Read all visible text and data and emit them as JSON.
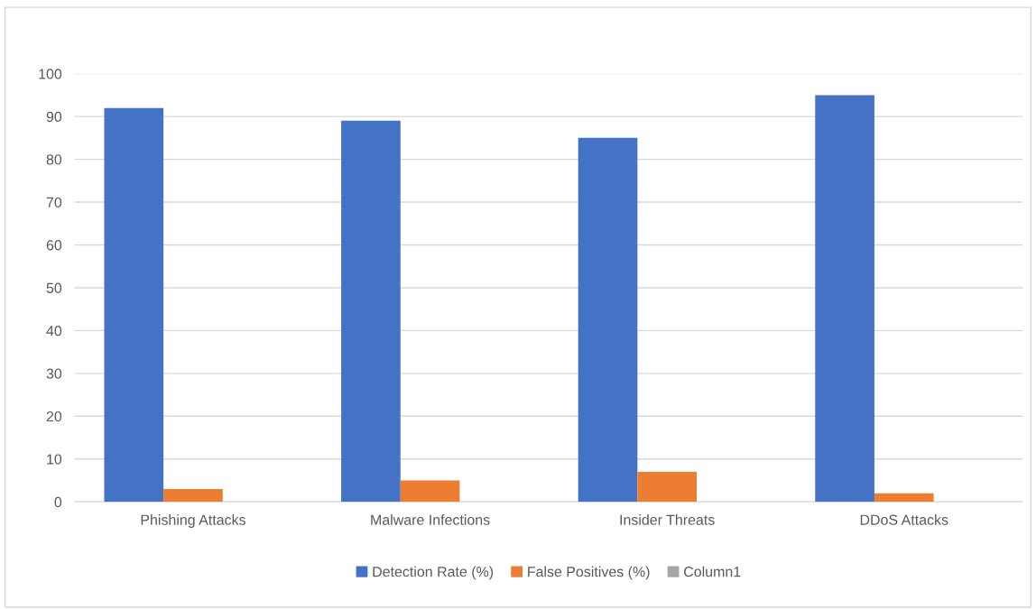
{
  "chart_data": {
    "type": "bar",
    "categories": [
      "Phishing Attacks",
      "Malware Infections",
      "Insider Threats",
      "DDoS Attacks"
    ],
    "series": [
      {
        "name": "Detection Rate (%)",
        "color": "#4472c4",
        "values": [
          92,
          89,
          85,
          95
        ]
      },
      {
        "name": "False Positives (%)",
        "color": "#ed7d31",
        "values": [
          3,
          5,
          7,
          2
        ]
      },
      {
        "name": "Column1",
        "color": "#a5a5a5",
        "values": [
          null,
          null,
          null,
          null
        ]
      }
    ],
    "ylim": [
      0,
      100
    ],
    "yticks": [
      0,
      10,
      20,
      30,
      40,
      50,
      60,
      70,
      80,
      90,
      100
    ],
    "grid": "y",
    "legend": "bottom"
  }
}
